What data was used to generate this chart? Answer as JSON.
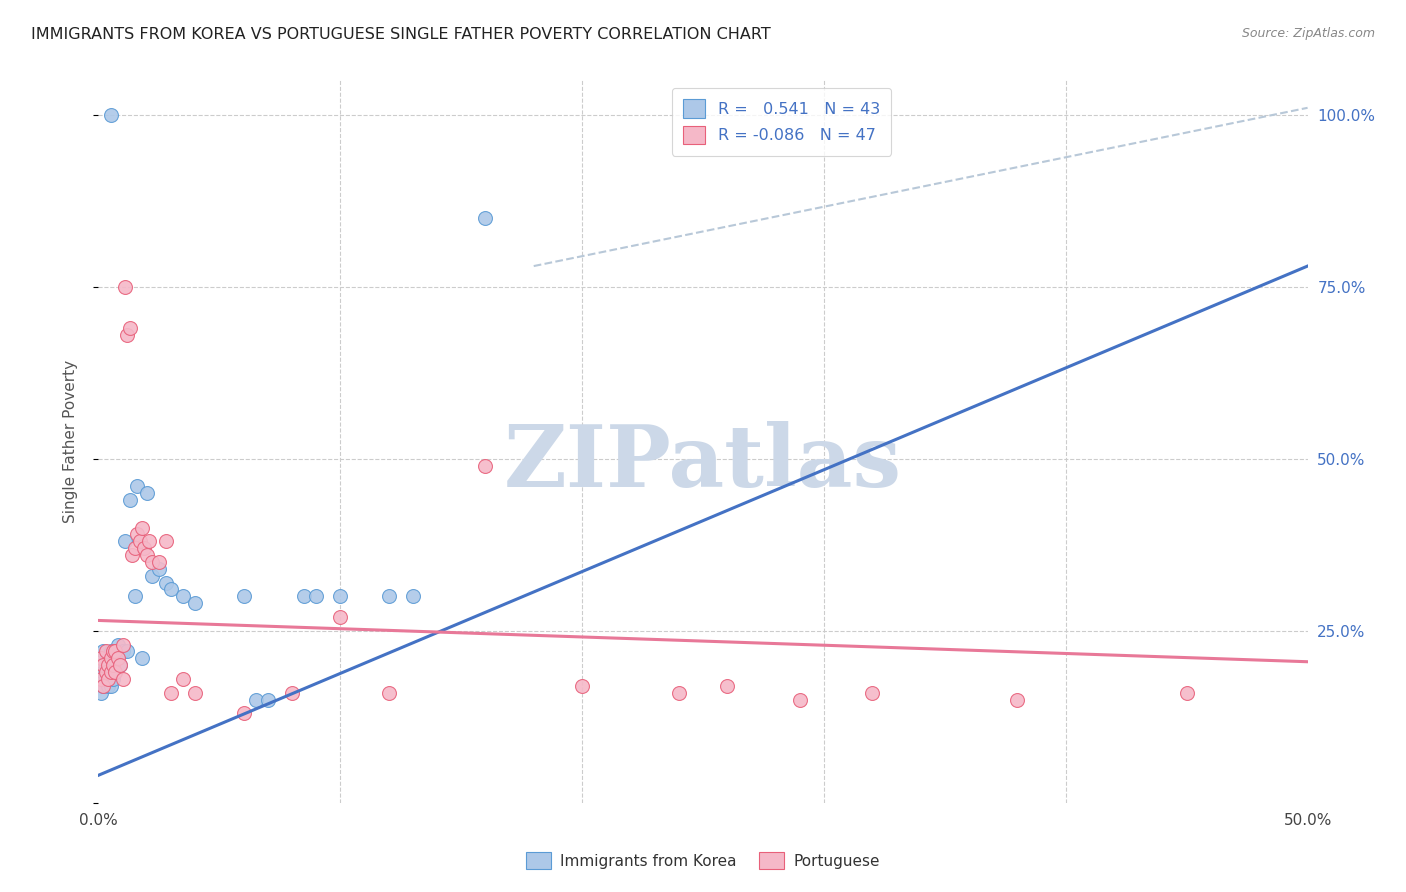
{
  "title": "IMMIGRANTS FROM KOREA VS PORTUGUESE SINGLE FATHER POVERTY CORRELATION CHART",
  "source": "Source: ZipAtlas.com",
  "ylabel": "Single Father Poverty",
  "legend_entries": [
    {
      "label": "Immigrants from Korea",
      "R": "0.541",
      "N": "43",
      "color": "#adc8e8",
      "edge_color": "#5b9bd5"
    },
    {
      "label": "Portuguese",
      "R": "-0.086",
      "N": "47",
      "color": "#f5b8c8",
      "edge_color": "#e8607a"
    }
  ],
  "korea_scatter_x": [
    0.001,
    0.001,
    0.001,
    0.002,
    0.002,
    0.002,
    0.003,
    0.003,
    0.004,
    0.004,
    0.005,
    0.005,
    0.005,
    0.006,
    0.006,
    0.007,
    0.007,
    0.008,
    0.009,
    0.01,
    0.011,
    0.012,
    0.013,
    0.015,
    0.016,
    0.018,
    0.02,
    0.022,
    0.025,
    0.028,
    0.03,
    0.035,
    0.04,
    0.06,
    0.065,
    0.07,
    0.085,
    0.09,
    0.1,
    0.12,
    0.13,
    0.16,
    0.005
  ],
  "korea_scatter_y": [
    0.2,
    0.18,
    0.16,
    0.22,
    0.19,
    0.17,
    0.2,
    0.18,
    0.21,
    0.17,
    0.22,
    0.19,
    0.17,
    0.2,
    0.18,
    0.21,
    0.19,
    0.23,
    0.2,
    0.22,
    0.38,
    0.22,
    0.44,
    0.3,
    0.46,
    0.21,
    0.45,
    0.33,
    0.34,
    0.32,
    0.31,
    0.3,
    0.29,
    0.3,
    0.15,
    0.15,
    0.3,
    0.3,
    0.3,
    0.3,
    0.3,
    0.85,
    1.0
  ],
  "port_scatter_x": [
    0.001,
    0.001,
    0.002,
    0.002,
    0.003,
    0.003,
    0.004,
    0.004,
    0.005,
    0.005,
    0.006,
    0.006,
    0.007,
    0.007,
    0.008,
    0.009,
    0.01,
    0.01,
    0.011,
    0.012,
    0.013,
    0.014,
    0.015,
    0.016,
    0.017,
    0.018,
    0.019,
    0.02,
    0.021,
    0.022,
    0.025,
    0.028,
    0.03,
    0.035,
    0.04,
    0.06,
    0.08,
    0.1,
    0.12,
    0.16,
    0.2,
    0.24,
    0.26,
    0.29,
    0.32,
    0.38,
    0.45
  ],
  "port_scatter_y": [
    0.21,
    0.18,
    0.2,
    0.17,
    0.19,
    0.22,
    0.2,
    0.18,
    0.21,
    0.19,
    0.22,
    0.2,
    0.19,
    0.22,
    0.21,
    0.2,
    0.23,
    0.18,
    0.75,
    0.68,
    0.69,
    0.36,
    0.37,
    0.39,
    0.38,
    0.4,
    0.37,
    0.36,
    0.38,
    0.35,
    0.35,
    0.38,
    0.16,
    0.18,
    0.16,
    0.13,
    0.16,
    0.27,
    0.16,
    0.49,
    0.17,
    0.16,
    0.17,
    0.15,
    0.16,
    0.15,
    0.16
  ],
  "korea_line_color": "#4472c4",
  "portuguese_line_color": "#e87898",
  "dashed_line_color": "#b8c8d8",
  "background_color": "#ffffff",
  "watermark": "ZIPatlas",
  "watermark_color": "#ccd8e8",
  "xlim": [
    0.0,
    0.5
  ],
  "ylim": [
    0.0,
    1.05
  ],
  "korea_line_x": [
    0.0,
    0.5
  ],
  "korea_line_y": [
    0.04,
    0.78
  ],
  "port_line_x": [
    0.0,
    0.5
  ],
  "port_line_y": [
    0.265,
    0.205
  ],
  "dash_line_x": [
    0.18,
    0.5
  ],
  "dash_line_y": [
    0.78,
    1.01
  ]
}
